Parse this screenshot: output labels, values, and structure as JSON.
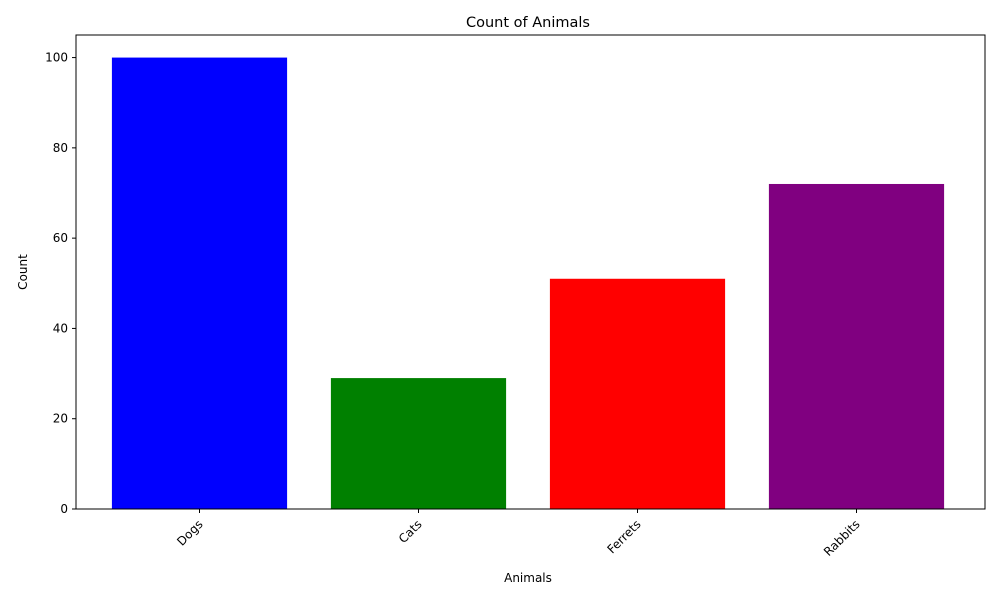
{
  "chart_data": {
    "type": "bar",
    "title": "Count of Animals",
    "xlabel": "Animals",
    "ylabel": "Count",
    "categories": [
      "Dogs",
      "Cats",
      "Ferrets",
      "Rabbits"
    ],
    "values": [
      100,
      29,
      51,
      72
    ],
    "colors": [
      "#0000ff",
      "#008000",
      "#ff0000",
      "#800080"
    ],
    "ylim": [
      0,
      105
    ],
    "yticks": [
      0,
      20,
      40,
      60,
      80,
      100
    ],
    "xtick_rotation": 45,
    "grid": false,
    "legend": "none"
  }
}
